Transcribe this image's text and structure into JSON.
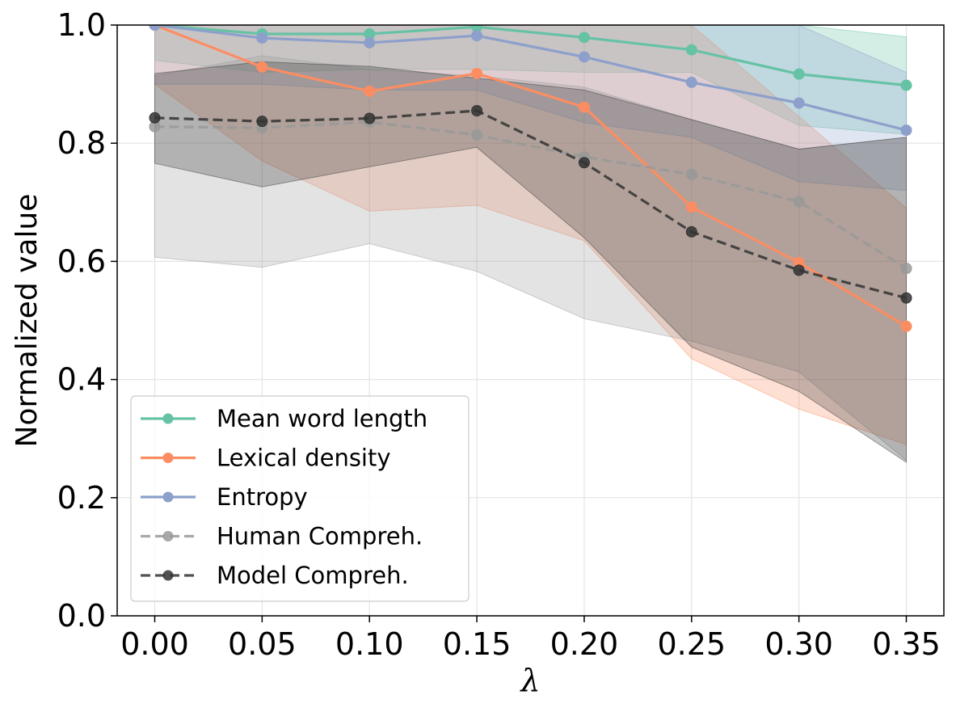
{
  "chart_data": {
    "type": "line",
    "title": "",
    "xlabel": "λ",
    "ylabel": "Normalized value",
    "x": [
      0.0,
      0.05,
      0.1,
      0.15,
      0.2,
      0.25,
      0.3,
      0.35
    ],
    "xticks": [
      "0.00",
      "0.05",
      "0.10",
      "0.15",
      "0.20",
      "0.25",
      "0.30",
      "0.35"
    ],
    "xlim": [
      -0.0175,
      0.3675
    ],
    "ylim": [
      0.0,
      1.0
    ],
    "yticks": [
      "0.0",
      "0.2",
      "0.4",
      "0.6",
      "0.8",
      "1.0"
    ],
    "grid": true,
    "legend_position": "lower-left",
    "series": [
      {
        "name": "Mean word length",
        "color": "#66c2a5",
        "dashed": false,
        "values": [
          1.0,
          0.985,
          0.985,
          0.997,
          0.979,
          0.958,
          0.917,
          0.898
        ],
        "band_low": [
          0.94,
          0.92,
          0.925,
          0.925,
          0.92,
          0.92,
          0.83,
          0.815
        ],
        "band_high": [
          1.0,
          1.0,
          1.0,
          1.0,
          1.0,
          1.0,
          1.0,
          0.98
        ]
      },
      {
        "name": "Lexical density",
        "color": "#fc8d62",
        "dashed": false,
        "values": [
          1.0,
          0.929,
          0.888,
          0.918,
          0.861,
          0.692,
          0.598,
          0.49
        ],
        "band_low": [
          0.9,
          0.77,
          0.685,
          0.695,
          0.635,
          0.435,
          0.35,
          0.29
        ],
        "band_high": [
          1.0,
          1.0,
          1.0,
          1.0,
          1.0,
          1.0,
          0.845,
          0.69
        ]
      },
      {
        "name": "Entropy",
        "color": "#8da0cb",
        "dashed": false,
        "values": [
          1.0,
          0.978,
          0.97,
          0.982,
          0.946,
          0.903,
          0.868,
          0.822
        ],
        "band_low": [
          0.9,
          0.9,
          0.89,
          0.89,
          0.835,
          0.81,
          0.735,
          0.72
        ],
        "band_high": [
          1.0,
          1.0,
          1.0,
          1.0,
          1.0,
          1.0,
          1.0,
          0.92
        ]
      },
      {
        "name": "Human Compreh.",
        "color": "#999999",
        "dashed": true,
        "values": [
          0.828,
          0.826,
          0.836,
          0.814,
          0.777,
          0.747,
          0.701,
          0.588
        ],
        "band_low": [
          0.607,
          0.59,
          0.63,
          0.583,
          0.503,
          0.465,
          0.413,
          0.263
        ],
        "band_high": [
          0.914,
          0.948,
          0.925,
          0.914,
          0.895,
          0.84,
          0.79,
          0.81
        ]
      },
      {
        "name": "Model Compreh.",
        "color": "#333333",
        "dashed": true,
        "values": [
          0.843,
          0.837,
          0.842,
          0.855,
          0.767,
          0.65,
          0.585,
          0.538
        ],
        "band_low": [
          0.766,
          0.726,
          0.76,
          0.793,
          0.64,
          0.455,
          0.38,
          0.26
        ],
        "band_high": [
          0.918,
          0.938,
          0.93,
          0.91,
          0.89,
          0.84,
          0.79,
          0.81
        ]
      }
    ]
  }
}
